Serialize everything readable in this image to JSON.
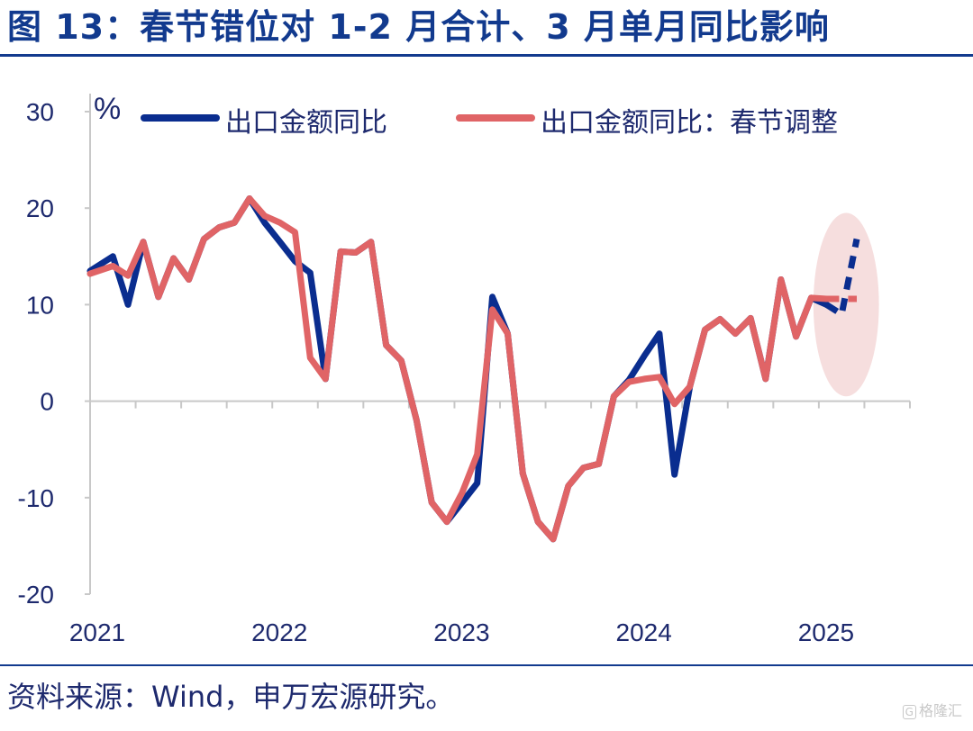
{
  "page": {
    "title": "图 13：春节错位对 1-2 月合计、3 月单月同比影响",
    "source": "资料来源：Wind，申万宏源研究。",
    "watermark_icon": "watermark-logo-icon",
    "watermark_text": "格隆汇"
  },
  "colors": {
    "title": "#123a8e",
    "series1": "#0a2d8f",
    "series2": "#e06466",
    "highlight": "#f6dede",
    "axis": "#c8c8c8",
    "text": "#1e2a6e"
  },
  "chart_data": {
    "type": "line",
    "unit_label": "%",
    "ylim": [
      -20,
      30
    ],
    "yticks": [
      30,
      20,
      10,
      0,
      -10,
      -20
    ],
    "x_range": [
      2021,
      2025.5
    ],
    "xticks": [
      2021,
      2022,
      2023,
      2024,
      2025
    ],
    "highlight": {
      "description": "2025 forecast region",
      "x_center": 2025.15,
      "y_center": 10,
      "x_radius": 0.18,
      "y_radius": 9.5
    },
    "series": [
      {
        "name": "出口金额同比",
        "style": "solid",
        "points": [
          [
            2021.0,
            13.5
          ],
          [
            2021.125,
            15.0
          ],
          [
            2021.208,
            10.0
          ],
          [
            2021.292,
            16.5
          ],
          [
            2021.375,
            10.8
          ],
          [
            2021.458,
            14.8
          ],
          [
            2021.542,
            12.6
          ],
          [
            2021.625,
            16.8
          ],
          [
            2021.708,
            18.0
          ],
          [
            2021.792,
            18.5
          ],
          [
            2021.875,
            21.0
          ],
          [
            2021.958,
            18.5
          ],
          [
            2022.042,
            16.5
          ],
          [
            2022.125,
            14.5
          ],
          [
            2022.208,
            13.3
          ],
          [
            2022.292,
            2.3
          ],
          [
            2022.375,
            15.5
          ],
          [
            2022.458,
            15.4
          ],
          [
            2022.542,
            16.5
          ],
          [
            2022.625,
            5.8
          ],
          [
            2022.708,
            4.2
          ],
          [
            2022.792,
            -2.0
          ],
          [
            2022.875,
            -10.5
          ],
          [
            2022.958,
            -12.5
          ],
          [
            2023.042,
            -10.5
          ],
          [
            2023.125,
            -8.5
          ],
          [
            2023.208,
            10.8
          ],
          [
            2023.292,
            7.0
          ],
          [
            2023.375,
            -7.5
          ],
          [
            2023.458,
            -12.5
          ],
          [
            2023.542,
            -14.3
          ],
          [
            2023.625,
            -8.8
          ],
          [
            2023.708,
            -6.9
          ],
          [
            2023.792,
            -6.5
          ],
          [
            2023.875,
            0.5
          ],
          [
            2023.958,
            2.2
          ],
          [
            2024.042,
            4.7
          ],
          [
            2024.125,
            7.0
          ],
          [
            2024.208,
            -7.6
          ],
          [
            2024.292,
            1.5
          ],
          [
            2024.375,
            7.4
          ],
          [
            2024.458,
            8.5
          ],
          [
            2024.542,
            7.0
          ],
          [
            2024.625,
            8.6
          ],
          [
            2024.708,
            2.3
          ],
          [
            2024.792,
            12.6
          ],
          [
            2024.875,
            6.7
          ],
          [
            2024.958,
            10.7
          ],
          [
            2025.042,
            10.0
          ]
        ]
      },
      {
        "name": "出口金额同比：春节调整",
        "style": "solid",
        "points": [
          [
            2021.0,
            13.2
          ],
          [
            2021.125,
            14.0
          ],
          [
            2021.208,
            13.0
          ],
          [
            2021.292,
            16.5
          ],
          [
            2021.375,
            10.8
          ],
          [
            2021.458,
            14.8
          ],
          [
            2021.542,
            12.6
          ],
          [
            2021.625,
            16.8
          ],
          [
            2021.708,
            18.0
          ],
          [
            2021.792,
            18.5
          ],
          [
            2021.875,
            21.0
          ],
          [
            2021.958,
            19.2
          ],
          [
            2022.042,
            18.5
          ],
          [
            2022.125,
            17.5
          ],
          [
            2022.208,
            4.5
          ],
          [
            2022.292,
            2.3
          ],
          [
            2022.375,
            15.5
          ],
          [
            2022.458,
            15.4
          ],
          [
            2022.542,
            16.5
          ],
          [
            2022.625,
            5.8
          ],
          [
            2022.708,
            4.2
          ],
          [
            2022.792,
            -2.0
          ],
          [
            2022.875,
            -10.5
          ],
          [
            2022.958,
            -12.5
          ],
          [
            2023.042,
            -9.5
          ],
          [
            2023.125,
            -5.5
          ],
          [
            2023.208,
            9.5
          ],
          [
            2023.292,
            7.0
          ],
          [
            2023.375,
            -7.5
          ],
          [
            2023.458,
            -12.5
          ],
          [
            2023.542,
            -14.3
          ],
          [
            2023.625,
            -8.8
          ],
          [
            2023.708,
            -6.9
          ],
          [
            2023.792,
            -6.5
          ],
          [
            2023.875,
            0.5
          ],
          [
            2023.958,
            2.0
          ],
          [
            2024.042,
            2.3
          ],
          [
            2024.125,
            2.5
          ],
          [
            2024.208,
            -0.3
          ],
          [
            2024.292,
            1.5
          ],
          [
            2024.375,
            7.4
          ],
          [
            2024.458,
            8.5
          ],
          [
            2024.542,
            7.0
          ],
          [
            2024.625,
            8.6
          ],
          [
            2024.708,
            2.3
          ],
          [
            2024.792,
            12.6
          ],
          [
            2024.875,
            6.7
          ],
          [
            2024.958,
            10.7
          ],
          [
            2025.042,
            10.6
          ]
        ]
      },
      {
        "name": "出口金额同比 (2025 预测)",
        "style": "dashed",
        "color_key": "series1",
        "points": [
          [
            2025.042,
            10.0
          ],
          [
            2025.125,
            9.0
          ],
          [
            2025.208,
            16.8
          ]
        ]
      },
      {
        "name": "出口金额同比：春节调整 (2025 预测)",
        "style": "dashed",
        "color_key": "series2",
        "points": [
          [
            2025.042,
            10.6
          ],
          [
            2025.125,
            10.6
          ],
          [
            2025.208,
            10.6
          ]
        ]
      }
    ],
    "legend": {
      "placement": "top",
      "entries": [
        {
          "label": "出口金额同比",
          "color_key": "series1"
        },
        {
          "label": "出口金额同比：春节调整",
          "color_key": "series2"
        }
      ]
    }
  }
}
